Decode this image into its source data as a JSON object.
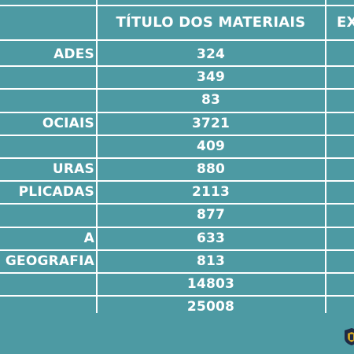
{
  "table": {
    "headers": {
      "area": "",
      "titulos": "TÍTULO DOS MATERIAIS",
      "exemplares": "EX"
    },
    "rows": [
      {
        "area": "ADES",
        "titulos": "324"
      },
      {
        "area": "",
        "titulos": "349"
      },
      {
        "area": "",
        "titulos": "83"
      },
      {
        "area": "OCIAIS",
        "titulos": "3721"
      },
      {
        "area": "",
        "titulos": "409"
      },
      {
        "area": "URAS",
        "titulos": "880"
      },
      {
        "area": "PLICADAS",
        "titulos": "2113"
      },
      {
        "area": "",
        "titulos": "877"
      },
      {
        "area": "A",
        "titulos": "633"
      },
      {
        "area": "GEOGRAFIA",
        "titulos": "813"
      },
      {
        "area": "",
        "titulos": "14803"
      },
      {
        "area": "",
        "titulos": "25008"
      }
    ]
  },
  "colors": {
    "background": "#4d9aa3",
    "text": "#ffffff",
    "logo_primary": "#1f2a44",
    "logo_accent": "#c9a227"
  },
  "icons": {
    "logo": "institution-crest-icon"
  }
}
